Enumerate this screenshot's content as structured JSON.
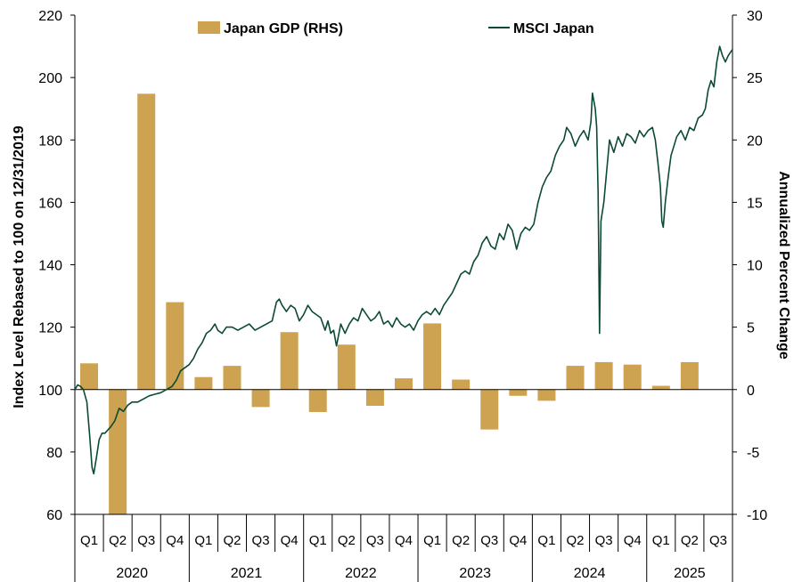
{
  "colors": {
    "gdp_bar": "#CDA250",
    "msci_line": "#0B4A33",
    "axis": "#000000"
  },
  "legend": {
    "gdp": "Japan GDP (RHS)",
    "msci": "MSCI Japan"
  },
  "chart_data": {
    "type": "bar+line",
    "ylabel_left": "Index Level Rebased to 100 on 12/31/2019",
    "ylabel_right": "Annualized Percent Change",
    "ylim_left": [
      60,
      220
    ],
    "ylim_right": [
      -10,
      30
    ],
    "yticks_left": [
      "60",
      "80",
      "100",
      "120",
      "140",
      "160",
      "180",
      "200",
      "220"
    ],
    "yticks_right": [
      "-10",
      "-5",
      "0",
      "5",
      "10",
      "15",
      "20",
      "25",
      "30"
    ],
    "years": [
      "2020",
      "2021",
      "2022",
      "2023",
      "2024",
      "2025"
    ],
    "quarters": [
      "Q1",
      "Q2",
      "Q3",
      "Q4",
      "Q1",
      "Q2",
      "Q3",
      "Q4",
      "Q1",
      "Q2",
      "Q3",
      "Q4",
      "Q1",
      "Q2",
      "Q3",
      "Q4",
      "Q1",
      "Q2",
      "Q3",
      "Q4",
      "Q1",
      "Q2",
      "Q3"
    ],
    "series": [
      {
        "name": "Japan GDP (RHS)",
        "kind": "bar",
        "axis": "right",
        "values": [
          2.1,
          -10.0,
          23.7,
          7.0,
          1.0,
          1.9,
          -1.4,
          4.6,
          -1.8,
          3.6,
          -1.3,
          0.9,
          5.3,
          0.8,
          -3.2,
          -0.5,
          -0.9,
          1.9,
          2.2,
          2.0,
          0.3,
          2.2,
          null
        ]
      },
      {
        "name": "MSCI Japan",
        "kind": "line",
        "axis": "left",
        "points": [
          [
            0.0,
            100
          ],
          [
            0.1,
            101.5
          ],
          [
            0.2,
            101
          ],
          [
            0.3,
            100
          ],
          [
            0.42,
            96
          ],
          [
            0.52,
            85
          ],
          [
            0.6,
            75
          ],
          [
            0.66,
            73
          ],
          [
            0.75,
            78
          ],
          [
            0.85,
            84
          ],
          [
            0.95,
            86
          ],
          [
            1.05,
            86
          ],
          [
            1.15,
            87
          ],
          [
            1.25,
            88
          ],
          [
            1.4,
            90
          ],
          [
            1.55,
            94
          ],
          [
            1.7,
            93
          ],
          [
            1.85,
            95
          ],
          [
            2.0,
            96
          ],
          [
            2.2,
            96
          ],
          [
            2.4,
            97
          ],
          [
            2.6,
            98
          ],
          [
            2.8,
            98.5
          ],
          [
            3.0,
            99
          ],
          [
            3.2,
            100
          ],
          [
            3.4,
            101
          ],
          [
            3.55,
            103
          ],
          [
            3.7,
            106
          ],
          [
            3.85,
            107
          ],
          [
            4.0,
            108
          ],
          [
            4.15,
            110
          ],
          [
            4.3,
            113
          ],
          [
            4.45,
            115
          ],
          [
            4.6,
            118
          ],
          [
            4.75,
            119
          ],
          [
            4.9,
            121
          ],
          [
            5.0,
            119
          ],
          [
            5.15,
            118
          ],
          [
            5.3,
            120
          ],
          [
            5.5,
            120
          ],
          [
            5.7,
            119
          ],
          [
            5.9,
            120
          ],
          [
            6.1,
            121
          ],
          [
            6.3,
            119
          ],
          [
            6.5,
            120
          ],
          [
            6.7,
            121
          ],
          [
            6.9,
            122
          ],
          [
            7.05,
            128
          ],
          [
            7.15,
            129
          ],
          [
            7.25,
            127
          ],
          [
            7.4,
            125
          ],
          [
            7.55,
            127
          ],
          [
            7.7,
            126
          ],
          [
            7.85,
            122
          ],
          [
            8.0,
            124
          ],
          [
            8.15,
            127
          ],
          [
            8.3,
            125
          ],
          [
            8.45,
            124
          ],
          [
            8.6,
            123
          ],
          [
            8.75,
            119
          ],
          [
            8.85,
            122
          ],
          [
            8.95,
            118
          ],
          [
            9.05,
            119
          ],
          [
            9.15,
            114
          ],
          [
            9.3,
            121
          ],
          [
            9.45,
            118
          ],
          [
            9.6,
            121
          ],
          [
            9.75,
            123
          ],
          [
            9.9,
            122
          ],
          [
            10.05,
            126
          ],
          [
            10.2,
            124
          ],
          [
            10.35,
            122
          ],
          [
            10.5,
            123
          ],
          [
            10.65,
            125
          ],
          [
            10.8,
            121
          ],
          [
            10.95,
            122
          ],
          [
            11.1,
            120
          ],
          [
            11.25,
            123
          ],
          [
            11.4,
            121
          ],
          [
            11.55,
            120
          ],
          [
            11.7,
            121
          ],
          [
            11.85,
            119
          ],
          [
            12.0,
            122
          ],
          [
            12.15,
            124
          ],
          [
            12.3,
            125
          ],
          [
            12.45,
            124
          ],
          [
            12.6,
            126
          ],
          [
            12.75,
            124
          ],
          [
            12.9,
            127
          ],
          [
            13.05,
            129
          ],
          [
            13.2,
            131
          ],
          [
            13.35,
            134
          ],
          [
            13.5,
            137
          ],
          [
            13.65,
            138
          ],
          [
            13.8,
            137
          ],
          [
            13.95,
            141
          ],
          [
            14.1,
            143
          ],
          [
            14.25,
            147
          ],
          [
            14.4,
            149
          ],
          [
            14.55,
            146
          ],
          [
            14.7,
            145
          ],
          [
            14.85,
            150
          ],
          [
            15.0,
            148
          ],
          [
            15.15,
            153
          ],
          [
            15.3,
            151
          ],
          [
            15.45,
            145
          ],
          [
            15.6,
            150
          ],
          [
            15.75,
            152
          ],
          [
            15.9,
            151
          ],
          [
            16.05,
            153
          ],
          [
            16.2,
            160
          ],
          [
            16.35,
            165
          ],
          [
            16.5,
            168
          ],
          [
            16.65,
            170
          ],
          [
            16.8,
            175
          ],
          [
            16.95,
            178
          ],
          [
            17.1,
            180
          ],
          [
            17.2,
            184
          ],
          [
            17.35,
            182
          ],
          [
            17.5,
            178
          ],
          [
            17.65,
            181
          ],
          [
            17.8,
            183
          ],
          [
            17.95,
            180
          ],
          [
            18.05,
            186
          ],
          [
            18.1,
            195
          ],
          [
            18.2,
            190
          ],
          [
            18.25,
            184
          ],
          [
            18.3,
            163
          ],
          [
            18.35,
            118
          ],
          [
            18.4,
            154
          ],
          [
            18.5,
            160
          ],
          [
            18.6,
            170
          ],
          [
            18.7,
            180
          ],
          [
            18.85,
            176
          ],
          [
            19.0,
            181
          ],
          [
            19.15,
            178
          ],
          [
            19.3,
            182
          ],
          [
            19.45,
            181
          ],
          [
            19.6,
            179
          ],
          [
            19.75,
            183
          ],
          [
            19.9,
            181
          ],
          [
            20.05,
            183
          ],
          [
            20.2,
            184
          ],
          [
            20.3,
            180
          ],
          [
            20.4,
            172
          ],
          [
            20.48,
            165
          ],
          [
            20.53,
            154
          ],
          [
            20.58,
            152
          ],
          [
            20.65,
            160
          ],
          [
            20.75,
            168
          ],
          [
            20.85,
            175
          ],
          [
            20.95,
            178
          ],
          [
            21.05,
            181
          ],
          [
            21.2,
            183
          ],
          [
            21.35,
            180
          ],
          [
            21.5,
            184
          ],
          [
            21.65,
            183
          ],
          [
            21.8,
            187
          ],
          [
            21.95,
            188
          ],
          [
            22.05,
            190
          ],
          [
            22.15,
            196
          ],
          [
            22.25,
            199
          ],
          [
            22.35,
            197
          ],
          [
            22.45,
            205
          ],
          [
            22.55,
            210
          ],
          [
            22.65,
            207
          ],
          [
            22.75,
            205
          ],
          [
            22.85,
            207
          ],
          [
            23.0,
            209
          ]
        ]
      }
    ]
  }
}
